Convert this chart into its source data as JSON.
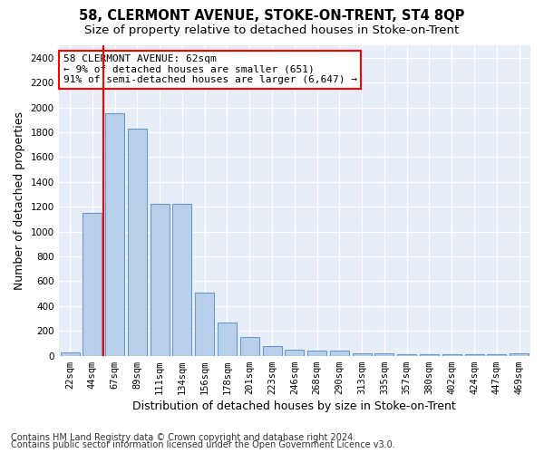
{
  "title": "58, CLERMONT AVENUE, STOKE-ON-TRENT, ST4 8QP",
  "subtitle": "Size of property relative to detached houses in Stoke-on-Trent",
  "xlabel": "Distribution of detached houses by size in Stoke-on-Trent",
  "ylabel": "Number of detached properties",
  "categories": [
    "22sqm",
    "44sqm",
    "67sqm",
    "89sqm",
    "111sqm",
    "134sqm",
    "156sqm",
    "178sqm",
    "201sqm",
    "223sqm",
    "246sqm",
    "268sqm",
    "290sqm",
    "313sqm",
    "335sqm",
    "357sqm",
    "380sqm",
    "402sqm",
    "424sqm",
    "447sqm",
    "469sqm"
  ],
  "values": [
    30,
    1150,
    1950,
    1830,
    1220,
    1220,
    510,
    265,
    150,
    80,
    50,
    45,
    40,
    20,
    18,
    10,
    10,
    10,
    10,
    10,
    18
  ],
  "bar_color": "#b8d0ea",
  "bar_edge_color": "#6699cc",
  "vline_color": "red",
  "vline_position": 1.5,
  "annotation_text": "58 CLERMONT AVENUE: 62sqm\n← 9% of detached houses are smaller (651)\n91% of semi-detached houses are larger (6,647) →",
  "annotation_box_color": "white",
  "annotation_box_edge_color": "red",
  "ylim": [
    0,
    2500
  ],
  "yticks": [
    0,
    200,
    400,
    600,
    800,
    1000,
    1200,
    1400,
    1600,
    1800,
    2000,
    2200,
    2400
  ],
  "footnote1": "Contains HM Land Registry data © Crown copyright and database right 2024.",
  "footnote2": "Contains public sector information licensed under the Open Government Licence v3.0.",
  "fig_bg_color": "#ffffff",
  "plot_bg_color": "#e8eef8",
  "grid_color": "#ffffff",
  "title_fontsize": 10.5,
  "subtitle_fontsize": 9.5,
  "axis_label_fontsize": 9,
  "tick_fontsize": 7.5,
  "annotation_fontsize": 8,
  "footnote_fontsize": 7
}
